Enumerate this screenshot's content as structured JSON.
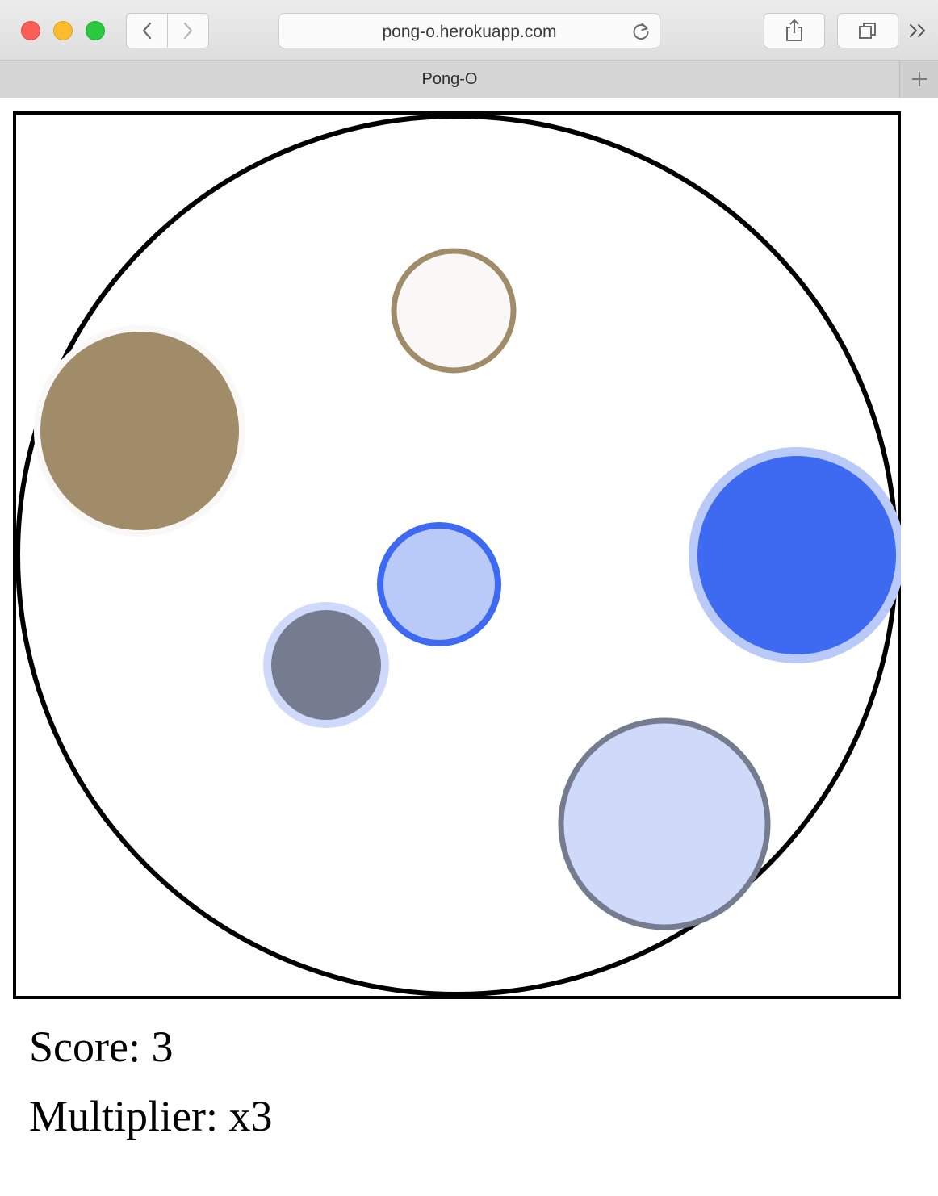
{
  "browser": {
    "url": "pong-o.herokuapp.com",
    "tab_title": "Pong-O"
  },
  "game": {
    "score_text": "Score: 3",
    "multiplier_text": "Multiplier: x3",
    "colors": {
      "arena_ring": "#000000",
      "tan": "#a08c69",
      "tan_light": "#faf8f6",
      "blue": "#3d6af0",
      "blue_light": "#b9c9f8",
      "blue_pale": "#cfd9fa",
      "slate": "#767c90"
    }
  }
}
